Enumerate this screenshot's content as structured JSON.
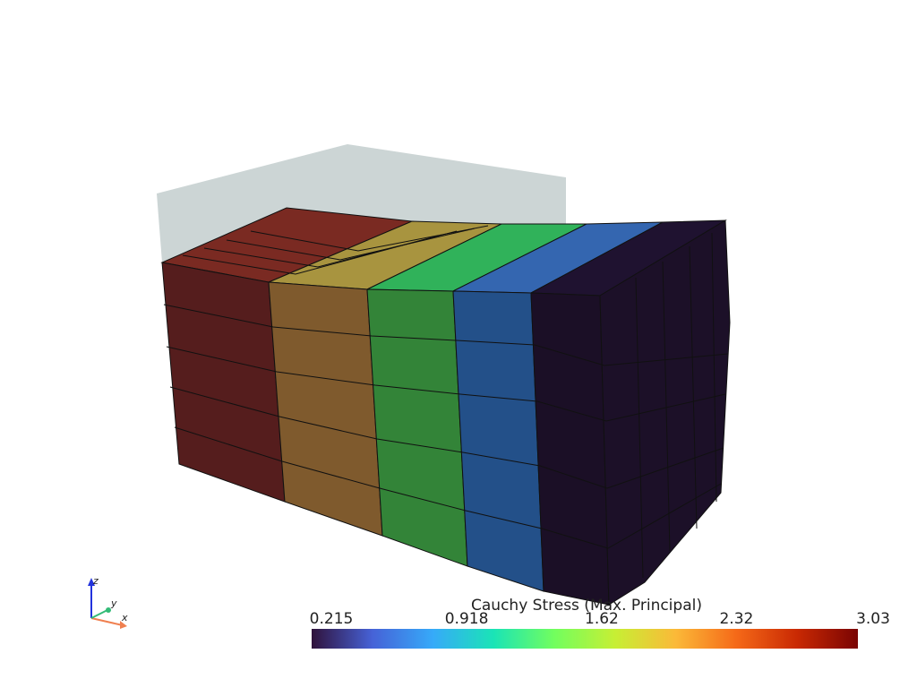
{
  "scalar_bar": {
    "title": "Cauchy Stress (Max. Principal)",
    "ticks": [
      0.215,
      0.918,
      1.62,
      2.32,
      3.03
    ]
  },
  "orientation_axes": {
    "x": "x",
    "y": "y",
    "z": "z"
  }
}
